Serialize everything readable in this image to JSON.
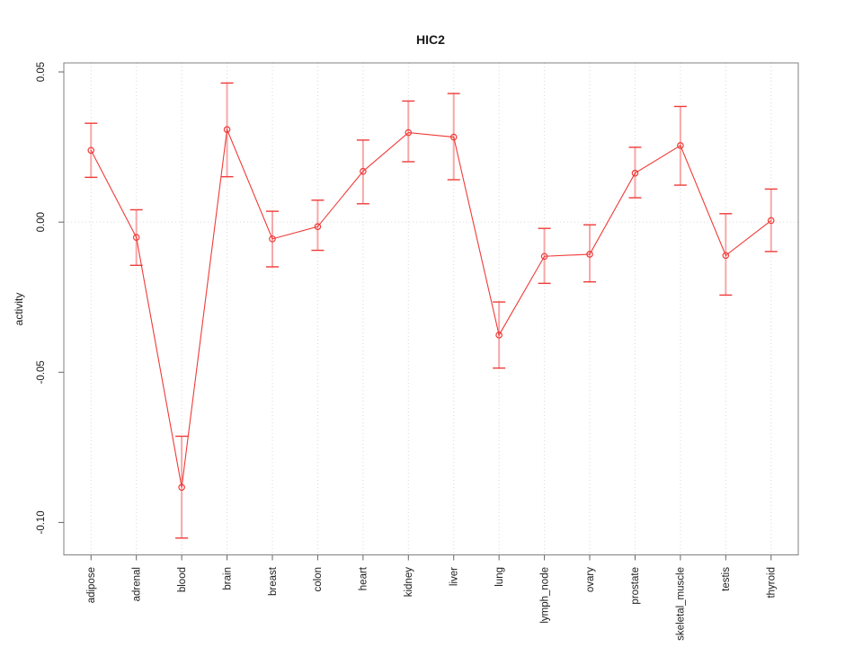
{
  "window": {
    "background": "#ffffff"
  },
  "chart_data": {
    "type": "line",
    "title": "HIC2",
    "xlabel": "",
    "ylabel": "activity",
    "legend": "none",
    "grid": "vertical dotted gridline at each category; horizontal dotted gridline at y=0",
    "categories": [
      "adipose",
      "adrenal",
      "blood",
      "brain",
      "breast",
      "colon",
      "heart",
      "kidney",
      "liver",
      "lung",
      "lymph_node",
      "ovary",
      "prostate",
      "skeletal_muscle",
      "testis",
      "thyroid"
    ],
    "series": [
      {
        "name": "activity",
        "values": [
          0.0239,
          -0.0051,
          -0.0883,
          0.0308,
          -0.0056,
          -0.0015,
          0.0169,
          0.0298,
          0.0283,
          -0.0376,
          -0.0114,
          -0.0107,
          0.0163,
          0.0255,
          -0.0111,
          0.0005
        ],
        "error_high": [
          0.0329,
          0.0041,
          -0.0713,
          0.0463,
          0.0036,
          0.0073,
          0.0273,
          0.0403,
          0.0428,
          -0.0266,
          -0.0021,
          -0.0009,
          0.0249,
          0.0385,
          0.0028,
          0.011
        ],
        "error_low": [
          0.0149,
          -0.0144,
          -0.1052,
          0.0151,
          -0.0149,
          -0.0094,
          0.0061,
          0.0201,
          0.0141,
          -0.0486,
          -0.0204,
          -0.0199,
          0.0081,
          0.0123,
          -0.0243,
          -0.0098
        ]
      }
    ],
    "ylim": [
      -0.1108,
      0.053
    ],
    "yticks": [
      0.05,
      0.0,
      -0.05,
      -0.1
    ],
    "ytick_labels": [
      "0.05",
      "0.00",
      "-0.05",
      "-0.10"
    ],
    "marker": "open-circle",
    "colors": {
      "line": "#ef3b38",
      "marker": "#ef3b38",
      "error_cap": "#ef3b38",
      "error_stem": "#f7a8a8",
      "gridline": "#d9d9d9",
      "box": "#808080",
      "tick": "#666666",
      "text": "#1a1a1a"
    }
  }
}
